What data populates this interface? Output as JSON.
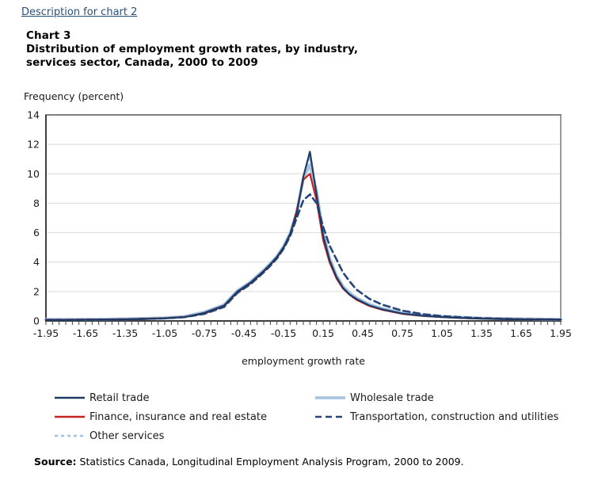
{
  "header": {
    "description_link": "Description for chart 2",
    "chart_number": "Chart 3",
    "title_line1": "Distribution of employment growth rates, by industry,",
    "title_line2": "services sector, Canada, 2000 to 2009"
  },
  "source": {
    "label": "Source:",
    "text": " Statistics Canada, Longitudinal Employment Analysis Program, 2000 to 2009."
  },
  "colors": {
    "link": "#29527A",
    "grid": "#D9D9D9",
    "axis_dark": "#404040",
    "border_gray": "#808080",
    "text": "#1A1A1A"
  },
  "chart_data": {
    "type": "line",
    "title": "Chart 3 — Distribution of employment growth rates, by industry, services sector, Canada, 2000 to 2009",
    "xlabel": "employment growth rate",
    "ylabel": "Frequency (percent)",
    "xlim": [
      -1.95,
      1.95
    ],
    "ylim": [
      0,
      14
    ],
    "x_tick_step": 0.05,
    "x_label_step": 0.3,
    "y_tick_step": 2,
    "grid": true,
    "legend_position": "bottom",
    "x": [
      -1.95,
      -1.8,
      -1.65,
      -1.5,
      -1.35,
      -1.2,
      -1.05,
      -0.9,
      -0.75,
      -0.6,
      -0.5,
      -0.4,
      -0.3,
      -0.25,
      -0.2,
      -0.15,
      -0.1,
      -0.05,
      0,
      0.05,
      0.1,
      0.15,
      0.2,
      0.25,
      0.3,
      0.35,
      0.4,
      0.5,
      0.6,
      0.75,
      0.9,
      1.05,
      1.2,
      1.35,
      1.5,
      1.65,
      1.8,
      1.95
    ],
    "series": [
      {
        "name": "Retail trade",
        "color": "#1F3B63",
        "width": 2.2,
        "dash": "",
        "z": 5,
        "column": 1,
        "values": [
          0.06,
          0.06,
          0.07,
          0.08,
          0.1,
          0.13,
          0.17,
          0.26,
          0.55,
          1.05,
          2.0,
          2.6,
          3.4,
          3.85,
          4.35,
          5.0,
          5.9,
          7.3,
          9.8,
          11.5,
          8.6,
          5.8,
          4.1,
          3.0,
          2.25,
          1.8,
          1.5,
          1.05,
          0.78,
          0.5,
          0.35,
          0.26,
          0.2,
          0.15,
          0.12,
          0.1,
          0.09,
          0.08
        ]
      },
      {
        "name": "Wholesale trade",
        "color": "#A9C4E1",
        "width": 3.8,
        "dash": "",
        "z": 1,
        "column": 2,
        "values": [
          0.1,
          0.1,
          0.11,
          0.12,
          0.14,
          0.17,
          0.21,
          0.3,
          0.6,
          1.1,
          2.05,
          2.65,
          3.45,
          3.9,
          4.4,
          5.05,
          5.95,
          7.4,
          9.7,
          10.6,
          8.8,
          6.0,
          4.25,
          3.1,
          2.35,
          1.9,
          1.58,
          1.12,
          0.84,
          0.55,
          0.4,
          0.3,
          0.24,
          0.19,
          0.16,
          0.14,
          0.12,
          0.11
        ]
      },
      {
        "name": "Finance, insurance and real estate",
        "color": "#C62222",
        "width": 2.2,
        "dash": "",
        "z": 3,
        "column": 1,
        "values": [
          0.08,
          0.08,
          0.09,
          0.1,
          0.12,
          0.15,
          0.19,
          0.27,
          0.5,
          1.0,
          1.95,
          2.55,
          3.35,
          3.8,
          4.3,
          4.95,
          5.85,
          7.5,
          9.6,
          10.0,
          8.2,
          5.5,
          3.95,
          2.9,
          2.2,
          1.78,
          1.45,
          1.02,
          0.75,
          0.48,
          0.34,
          0.26,
          0.2,
          0.16,
          0.14,
          0.12,
          0.11,
          0.1
        ]
      },
      {
        "name": "Transportation, construction and utilities",
        "color": "#26457A",
        "width": 2.6,
        "dash": "8 5",
        "z": 4,
        "column": 2,
        "values": [
          0.07,
          0.07,
          0.08,
          0.09,
          0.11,
          0.14,
          0.18,
          0.26,
          0.48,
          0.95,
          1.9,
          2.5,
          3.3,
          3.75,
          4.25,
          4.9,
          5.75,
          7.0,
          8.2,
          8.6,
          8.0,
          6.4,
          5.1,
          4.2,
          3.3,
          2.7,
          2.15,
          1.5,
          1.1,
          0.7,
          0.47,
          0.33,
          0.25,
          0.19,
          0.15,
          0.12,
          0.1,
          0.09
        ]
      },
      {
        "name": "Other services",
        "color": "#9FC0E5",
        "width": 1.8,
        "dash": "4 4",
        "z": 2,
        "column": 1,
        "values": [
          0.08,
          0.08,
          0.09,
          0.1,
          0.12,
          0.14,
          0.18,
          0.26,
          0.5,
          1.0,
          2.0,
          2.6,
          3.4,
          3.85,
          4.35,
          5.0,
          5.9,
          7.35,
          9.9,
          11.1,
          9.0,
          6.1,
          4.3,
          3.15,
          2.4,
          1.95,
          1.6,
          1.15,
          0.86,
          0.56,
          0.4,
          0.3,
          0.23,
          0.18,
          0.15,
          0.13,
          0.11,
          0.1
        ]
      }
    ]
  }
}
